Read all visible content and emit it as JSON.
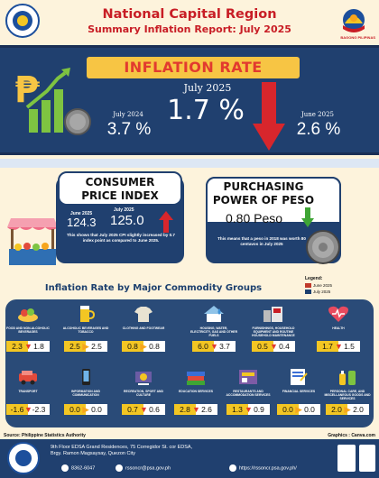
{
  "header": {
    "title": "National Capital Region",
    "subtitle": "Summary Inflation Report: July 2025",
    "right_logo_caption": "BAGONG PILIPINAS"
  },
  "inflation_rate": {
    "banner": "INFLATION RATE",
    "current_label": "July 2025",
    "current_value": "1.7 %",
    "prev_year_label": "July 2024",
    "prev_year_value": "3.7 %",
    "prev_month_label": "June 2025",
    "prev_month_value": "2.6 %",
    "trend": "down"
  },
  "cpi": {
    "title_line1": "CONSUMER",
    "title_line2": "PRICE INDEX",
    "june_label": "June 2025",
    "june_value": "124.3",
    "july_label": "July 2025",
    "july_value": "125.0",
    "note": "This shows that  July 2025 CPI  slightly increased by 0.7 index point as compared to June 2025."
  },
  "ppp": {
    "title_line1": "PURCHASING",
    "title_line2": "POWER OF PESO",
    "value": "0.80 Peso",
    "note": "This means that a peso in 2018 was worth 80 centavos in July 2025"
  },
  "commodity": {
    "title": "Inflation Rate by Major Commodity Groups",
    "legend_title": "Legend:",
    "legend": [
      {
        "label": "June 2025",
        "color": "#c0392b"
      },
      {
        "label": "July 2025",
        "color": "#1c3f6e"
      }
    ],
    "groups": [
      {
        "label": "FOOD AND NON-ALCOHOLIC BEVERAGES",
        "june": "2.3",
        "july": "1.8",
        "icon": "food-icon"
      },
      {
        "label": "ALCOHOLIC BEVERAGES AND TOBACCO",
        "june": "2.5",
        "july": "2.5",
        "icon": "beer-icon"
      },
      {
        "label": "CLOTHING AND FOOTWEAR",
        "june": "0.8",
        "july": "0.8",
        "icon": "clothing-icon"
      },
      {
        "label": "HOUSING, WATER, ELECTRICITY, GAS AND OTHER FUELS",
        "june": "6.0",
        "july": "3.7",
        "icon": "housing-icon"
      },
      {
        "label": "FURNISHINGS, HOUSEHOLD EQUIPMENT AND ROUTINE HOUSEHOLD MAINTENANCE",
        "june": "0.5",
        "july": "0.4",
        "icon": "furniture-icon"
      },
      {
        "label": "HEALTH",
        "june": "1.7",
        "july": "1.5",
        "icon": "health-icon"
      },
      {
        "label": "TRANSPORT",
        "june": "-1.6",
        "july": "-2.3",
        "icon": "transport-icon"
      },
      {
        "label": "INFORMATION AND COMMUNICATION",
        "june": "0.0",
        "july": "0.0",
        "icon": "phone-icon"
      },
      {
        "label": "RECREATION, SPORT AND CULTURE",
        "june": "0.7",
        "july": "0.6",
        "icon": "recreation-icon"
      },
      {
        "label": "EDUCATION SERVICES",
        "june": "2.8",
        "july": "2.6",
        "icon": "books-icon"
      },
      {
        "label": "RESTAURANTS AND ACCOMMODATION SERVICES",
        "june": "1.3",
        "july": "0.9",
        "icon": "restaurant-icon"
      },
      {
        "label": "FINANCIAL SERVICES",
        "june": "0.0",
        "july": "0.0",
        "icon": "finance-icon"
      },
      {
        "label": "PERSONAL CARE, AND MISCELLANEOUS GOODS AND SERVICES",
        "june": "2.0",
        "july": "2.0",
        "icon": "personal-care-icon"
      }
    ]
  },
  "footer": {
    "source": "Source: Philippine Statistics Authority",
    "graphics": "Graphics : Canva.com",
    "address_line1": "9th Floor EDSA Grand Residences, 75 Corregidor St. cor EDSA,",
    "address_line2": "Brgy. Ramon Magsaysay, Quezon City",
    "phone": "8362-6047",
    "email": "rssoncr@psa.gov.ph",
    "website": "https://rssoncr.psa.gov.ph/"
  },
  "colors": {
    "navy": "#20406f",
    "red": "#c81d25",
    "yellow": "#f3c623",
    "cream": "#fdf3dc"
  }
}
